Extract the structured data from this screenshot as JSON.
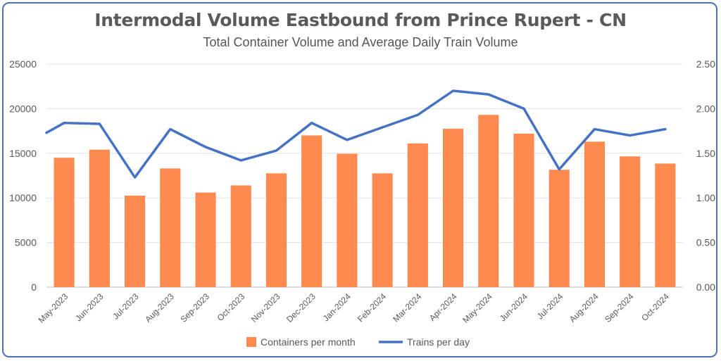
{
  "chart_data": {
    "type": "bar",
    "title": "Intermodal Volume Eastbound from Prince Rupert - CN",
    "subtitle": "Total Container Volume and Average Daily Train Volume",
    "categories": [
      "May-2023",
      "Jun-2023",
      "Jul-2023",
      "Aug-2023",
      "Sep-2023",
      "Oct-2023",
      "Nov-2023",
      "Dec-2023",
      "Jan-2024",
      "Feb-2024",
      "Mar-2024",
      "Apr-2024",
      "May-2024",
      "Jun-2024",
      "Jul-2024",
      "Aug-2024",
      "Sep-2024",
      "Oct-2024"
    ],
    "series": [
      {
        "name": "Containers per month",
        "type": "bar",
        "axis": "left",
        "color": "#ff8a50",
        "values": [
          14500,
          15400,
          10250,
          13300,
          10600,
          11400,
          12750,
          17000,
          14950,
          12750,
          16100,
          17750,
          19300,
          17200,
          13150,
          16300,
          14650,
          13850
        ]
      },
      {
        "name": "Trains per day",
        "type": "line",
        "axis": "right",
        "color": "#4472c4",
        "values": [
          1.84,
          1.83,
          1.23,
          1.77,
          1.57,
          1.42,
          1.53,
          1.84,
          1.65,
          1.79,
          1.93,
          2.2,
          2.16,
          2.0,
          1.32,
          1.77,
          1.7,
          1.77
        ]
      }
    ],
    "line_start_value": 1.73,
    "y_left": {
      "min": 0,
      "max": 25000,
      "ticks": [
        "0",
        "5000",
        "10000",
        "15000",
        "20000",
        "25000"
      ],
      "tick_values": [
        0,
        5000,
        10000,
        15000,
        20000,
        25000
      ]
    },
    "y_right": {
      "min": 0,
      "max": 2.5,
      "ticks": [
        "0.00",
        "0.50",
        "1.00",
        "1.50",
        "2.00",
        "2.50"
      ],
      "tick_values": [
        0,
        0.5,
        1,
        1.5,
        2,
        2.5
      ]
    },
    "legend_position": "bottom",
    "grid": true
  }
}
